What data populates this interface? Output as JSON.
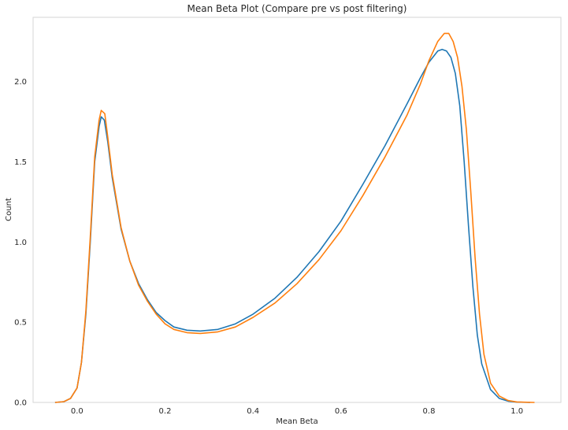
{
  "chart_data": {
    "type": "line",
    "title": "Mean Beta Plot (Compare pre vs post filtering)",
    "xlabel": "Mean Beta",
    "ylabel": "Count",
    "xlim": [
      -0.1,
      1.1
    ],
    "ylim": [
      0.0,
      2.4
    ],
    "x_ticks": [
      0.0,
      0.2,
      0.4,
      0.6,
      0.8,
      1.0
    ],
    "x_tick_labels": [
      "0.0",
      "0.2",
      "0.4",
      "0.6",
      "0.8",
      "1.0"
    ],
    "y_ticks": [
      0.0,
      0.5,
      1.0,
      1.5,
      2.0
    ],
    "y_tick_labels": [
      "0.0",
      "0.5",
      "1.0",
      "1.5",
      "2.0"
    ],
    "grid": false,
    "legend": "none",
    "series": [
      {
        "color": "#1f77b4",
        "points": [
          [
            -0.05,
            0.0
          ],
          [
            -0.03,
            0.005
          ],
          [
            -0.015,
            0.025
          ],
          [
            0.0,
            0.09
          ],
          [
            0.01,
            0.25
          ],
          [
            0.02,
            0.55
          ],
          [
            0.03,
            1.0
          ],
          [
            0.04,
            1.5
          ],
          [
            0.05,
            1.72
          ],
          [
            0.055,
            1.78
          ],
          [
            0.062,
            1.76
          ],
          [
            0.07,
            1.62
          ],
          [
            0.08,
            1.4
          ],
          [
            0.1,
            1.08
          ],
          [
            0.12,
            0.88
          ],
          [
            0.14,
            0.74
          ],
          [
            0.16,
            0.64
          ],
          [
            0.18,
            0.56
          ],
          [
            0.2,
            0.51
          ],
          [
            0.22,
            0.47
          ],
          [
            0.25,
            0.45
          ],
          [
            0.28,
            0.445
          ],
          [
            0.32,
            0.455
          ],
          [
            0.36,
            0.49
          ],
          [
            0.4,
            0.55
          ],
          [
            0.45,
            0.65
          ],
          [
            0.5,
            0.78
          ],
          [
            0.55,
            0.94
          ],
          [
            0.6,
            1.13
          ],
          [
            0.65,
            1.36
          ],
          [
            0.7,
            1.6
          ],
          [
            0.75,
            1.86
          ],
          [
            0.78,
            2.02
          ],
          [
            0.8,
            2.12
          ],
          [
            0.82,
            2.19
          ],
          [
            0.83,
            2.2
          ],
          [
            0.84,
            2.19
          ],
          [
            0.85,
            2.15
          ],
          [
            0.86,
            2.05
          ],
          [
            0.87,
            1.85
          ],
          [
            0.88,
            1.5
          ],
          [
            0.89,
            1.1
          ],
          [
            0.9,
            0.72
          ],
          [
            0.91,
            0.42
          ],
          [
            0.92,
            0.24
          ],
          [
            0.94,
            0.08
          ],
          [
            0.96,
            0.025
          ],
          [
            0.98,
            0.008
          ],
          [
            1.0,
            0.002
          ],
          [
            1.03,
            0.0
          ]
        ]
      },
      {
        "color": "#ff7f0e",
        "points": [
          [
            -0.05,
            0.0
          ],
          [
            -0.03,
            0.005
          ],
          [
            -0.015,
            0.025
          ],
          [
            0.0,
            0.09
          ],
          [
            0.01,
            0.25
          ],
          [
            0.02,
            0.57
          ],
          [
            0.03,
            1.03
          ],
          [
            0.04,
            1.53
          ],
          [
            0.05,
            1.76
          ],
          [
            0.055,
            1.82
          ],
          [
            0.063,
            1.8
          ],
          [
            0.07,
            1.65
          ],
          [
            0.08,
            1.42
          ],
          [
            0.1,
            1.09
          ],
          [
            0.12,
            0.88
          ],
          [
            0.14,
            0.73
          ],
          [
            0.16,
            0.63
          ],
          [
            0.18,
            0.55
          ],
          [
            0.2,
            0.49
          ],
          [
            0.22,
            0.455
          ],
          [
            0.25,
            0.435
          ],
          [
            0.28,
            0.43
          ],
          [
            0.32,
            0.44
          ],
          [
            0.36,
            0.47
          ],
          [
            0.4,
            0.53
          ],
          [
            0.45,
            0.62
          ],
          [
            0.5,
            0.74
          ],
          [
            0.55,
            0.89
          ],
          [
            0.6,
            1.07
          ],
          [
            0.65,
            1.29
          ],
          [
            0.7,
            1.53
          ],
          [
            0.75,
            1.79
          ],
          [
            0.78,
            1.98
          ],
          [
            0.8,
            2.13
          ],
          [
            0.82,
            2.25
          ],
          [
            0.835,
            2.3
          ],
          [
            0.845,
            2.3
          ],
          [
            0.855,
            2.25
          ],
          [
            0.865,
            2.15
          ],
          [
            0.875,
            1.97
          ],
          [
            0.885,
            1.7
          ],
          [
            0.895,
            1.32
          ],
          [
            0.905,
            0.9
          ],
          [
            0.915,
            0.55
          ],
          [
            0.925,
            0.3
          ],
          [
            0.94,
            0.12
          ],
          [
            0.96,
            0.04
          ],
          [
            0.98,
            0.012
          ],
          [
            1.0,
            0.003
          ],
          [
            1.04,
            0.0
          ]
        ]
      }
    ]
  }
}
